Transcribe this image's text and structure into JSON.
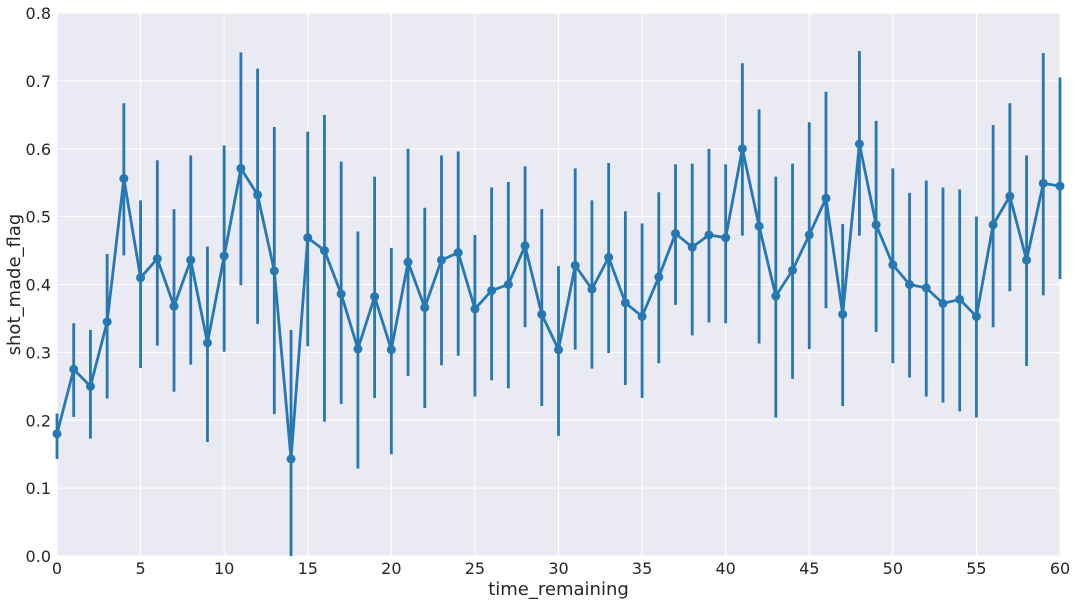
{
  "chart_data": {
    "type": "line",
    "title": "",
    "xlabel": "time_remaining",
    "ylabel": "shot_made_flag",
    "xlim": [
      0,
      60
    ],
    "ylim": [
      0,
      0.8
    ],
    "x_ticks": [
      0,
      5,
      10,
      15,
      20,
      25,
      30,
      35,
      40,
      45,
      50,
      55,
      60
    ],
    "y_ticks": [
      0.0,
      0.1,
      0.2,
      0.3,
      0.4,
      0.5,
      0.6,
      0.7,
      0.8
    ],
    "y_tick_labels": [
      "0.0",
      "0.1",
      "0.2",
      "0.3",
      "0.4",
      "0.5",
      "0.6",
      "0.7",
      "0.8"
    ],
    "grid": true,
    "colors": {
      "series": "#2678b2",
      "background": "#eaeaf2",
      "grid": "#ffffff"
    },
    "series": [
      {
        "x": [
          0,
          1,
          2,
          3,
          4,
          5,
          6,
          7,
          8,
          9,
          10,
          11,
          12,
          13,
          14,
          15,
          16,
          17,
          18,
          19,
          20,
          21,
          22,
          23,
          24,
          25,
          26,
          27,
          28,
          29,
          30,
          31,
          32,
          33,
          34,
          35,
          36,
          37,
          38,
          39,
          40,
          41,
          42,
          43,
          44,
          45,
          46,
          47,
          48,
          49,
          50,
          51,
          52,
          53,
          54,
          55,
          56,
          57,
          58,
          59,
          60
        ],
        "y": [
          0.18,
          0.275,
          0.25,
          0.345,
          0.556,
          0.41,
          0.438,
          0.368,
          0.436,
          0.314,
          0.442,
          0.571,
          0.532,
          0.42,
          0.143,
          0.469,
          0.45,
          0.386,
          0.305,
          0.382,
          0.304,
          0.433,
          0.366,
          0.436,
          0.447,
          0.364,
          0.391,
          0.4,
          0.457,
          0.356,
          0.304,
          0.428,
          0.393,
          0.44,
          0.373,
          0.353,
          0.411,
          0.475,
          0.455,
          0.473,
          0.469,
          0.6,
          0.486,
          0.383,
          0.421,
          0.473,
          0.527,
          0.356,
          0.607,
          0.488,
          0.429,
          0.4,
          0.395,
          0.372,
          0.378,
          0.353,
          0.488,
          0.53,
          0.436,
          0.549,
          0.545
        ],
        "y_lower": [
          0.143,
          0.205,
          0.173,
          0.232,
          0.443,
          0.277,
          0.31,
          0.242,
          0.282,
          0.168,
          0.301,
          0.399,
          0.342,
          0.209,
          0.0,
          0.309,
          0.198,
          0.224,
          0.129,
          0.233,
          0.15,
          0.265,
          0.218,
          0.281,
          0.295,
          0.235,
          0.259,
          0.247,
          0.337,
          0.221,
          0.177,
          0.304,
          0.276,
          0.299,
          0.252,
          0.233,
          0.284,
          0.37,
          0.325,
          0.344,
          0.343,
          0.472,
          0.313,
          0.204,
          0.261,
          0.305,
          0.365,
          0.221,
          0.472,
          0.33,
          0.284,
          0.263,
          0.235,
          0.226,
          0.213,
          0.204,
          0.337,
          0.39,
          0.28,
          0.384,
          0.408
        ],
        "y_upper": [
          0.21,
          0.343,
          0.333,
          0.445,
          0.667,
          0.524,
          0.583,
          0.511,
          0.59,
          0.456,
          0.605,
          0.742,
          0.718,
          0.632,
          0.333,
          0.625,
          0.65,
          0.581,
          0.478,
          0.559,
          0.454,
          0.6,
          0.513,
          0.59,
          0.596,
          0.473,
          0.543,
          0.551,
          0.574,
          0.511,
          0.427,
          0.571,
          0.524,
          0.579,
          0.508,
          0.49,
          0.536,
          0.577,
          0.578,
          0.6,
          0.577,
          0.726,
          0.658,
          0.559,
          0.578,
          0.639,
          0.684,
          0.489,
          0.744,
          0.641,
          0.571,
          0.535,
          0.553,
          0.543,
          0.54,
          0.5,
          0.635,
          0.667,
          0.59,
          0.741,
          0.705
        ]
      }
    ]
  }
}
